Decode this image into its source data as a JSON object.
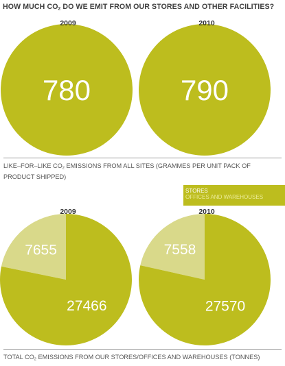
{
  "title": {
    "pre": "HOW MUCH CO",
    "sub": "2",
    "post": " DO WE EMIT FROM OUR STORES AND OTHER FACILITIES?"
  },
  "colors": {
    "stores": "#bdbd1e",
    "offices": "#d9d98a"
  },
  "chart_data": [
    {
      "type": "pie",
      "title": "LIKE-FOR-LIKE CO2 EMISSIONS FROM ALL SITES (GRAMMES PER UNIT PACK OF PRODUCT SHIPPED)",
      "categories": [
        "2009",
        "2010"
      ],
      "values": [
        780,
        790
      ]
    },
    {
      "type": "pie",
      "title": "TOTAL CO2 EMISSIONS FROM OUR STORES/OFFICES AND WAREHOUSES (TONNES)",
      "categories": [
        "2009",
        "2010"
      ],
      "legend": [
        "STORES",
        "OFFICES AND WAREHOUSES"
      ],
      "series": [
        {
          "name": "STORES",
          "values": [
            27466,
            27570
          ]
        },
        {
          "name": "OFFICES AND WAREHOUSES",
          "values": [
            7655,
            7558
          ]
        }
      ]
    }
  ],
  "caption1": {
    "pre": "LIKE–FOR–LIKE CO",
    "sub": "2",
    "post": " EMISSIONS FROM ALL SITES (GRAMMES PER UNIT PACK OF PRODUCT SHIPPED)"
  },
  "caption2": {
    "pre": "TOTAL CO",
    "sub": "2",
    "post": " EMISSIONS FROM OUR STORES/OFFICES AND WAREHOUSES (TONNES)"
  }
}
